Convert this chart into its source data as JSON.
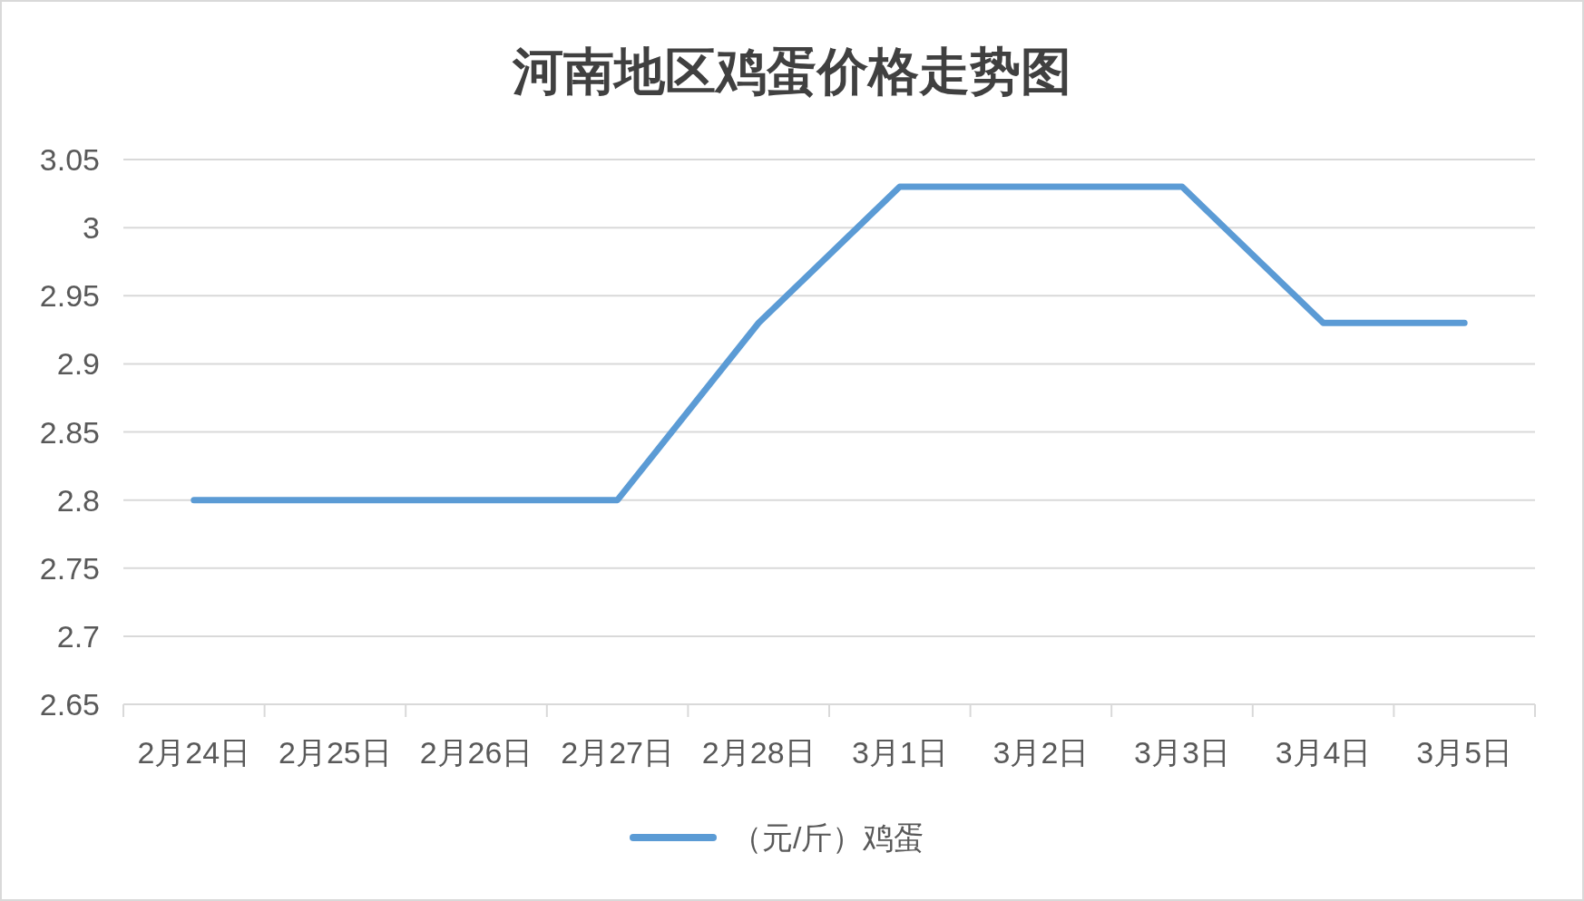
{
  "chart_data": {
    "type": "line",
    "title": "河南地区鸡蛋价格走势图",
    "categories": [
      "2月24日",
      "2月25日",
      "2月26日",
      "2月27日",
      "2月28日",
      "3月1日",
      "3月2日",
      "3月3日",
      "3月4日",
      "3月5日"
    ],
    "series": [
      {
        "name": "（元/斤）鸡蛋",
        "color": "#5b9bd5",
        "values": [
          2.8,
          2.8,
          2.8,
          2.8,
          2.93,
          3.03,
          3.03,
          3.03,
          2.93,
          2.93
        ]
      }
    ],
    "ylim": [
      2.65,
      3.05
    ],
    "yticks": [
      2.65,
      2.7,
      2.75,
      2.8,
      2.85,
      2.9,
      2.95,
      3,
      3.05
    ],
    "grid": "y",
    "legend": "bottom"
  }
}
